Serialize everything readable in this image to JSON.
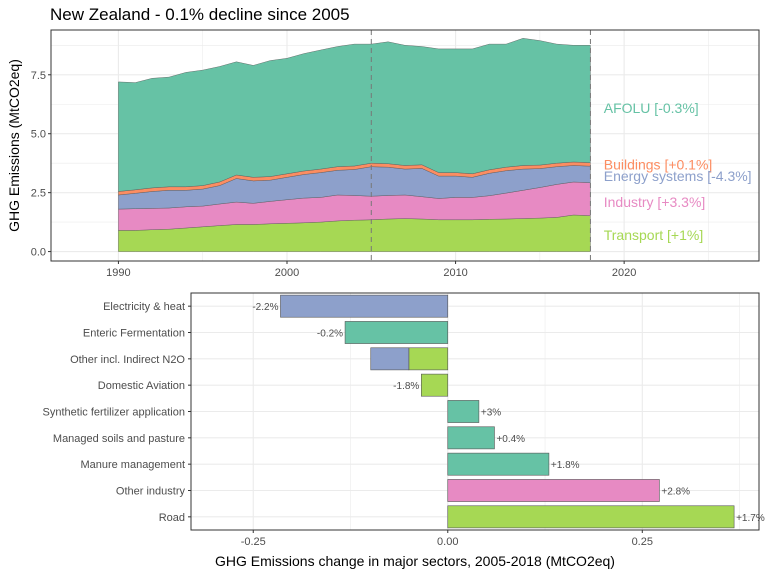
{
  "title": "New Zealand - 0.1% decline since 2005",
  "colors": {
    "afolu": "#66c2a5",
    "buildings": "#fc8d62",
    "energy": "#8da0cb",
    "industry": "#e78ac3",
    "transport": "#a6d854",
    "panel_border": "#333333",
    "grid": "#ebebeb"
  },
  "chart_data": [
    {
      "type": "area",
      "stacked": true,
      "title": "New Zealand - 0.1% decline since 2005",
      "xlabel": "",
      "ylabel": "GHG Emissions (MtCO2eq)",
      "xlim": [
        1986,
        2028
      ],
      "ylim": [
        -0.4,
        9.4
      ],
      "x_ticks": [
        1990,
        2000,
        2010,
        2020
      ],
      "y_ticks": [
        0.0,
        2.5,
        5.0,
        7.5
      ],
      "y_tick_labels": [
        "0.0",
        "2.5",
        "5.0",
        "7.5"
      ],
      "x_tick_labels": [
        "1990",
        "2000",
        "2010",
        "2020"
      ],
      "grid": true,
      "reference_lines_x": [
        2005,
        2018
      ],
      "x": [
        1990,
        1991,
        1992,
        1993,
        1994,
        1995,
        1996,
        1997,
        1998,
        1999,
        2000,
        2001,
        2002,
        2003,
        2004,
        2005,
        2006,
        2007,
        2008,
        2009,
        2010,
        2011,
        2012,
        2013,
        2014,
        2015,
        2016,
        2017,
        2018
      ],
      "series": [
        {
          "name": "Transport [+1%]",
          "key": "transport",
          "values": [
            0.9,
            0.9,
            0.93,
            0.95,
            1.0,
            1.05,
            1.1,
            1.15,
            1.15,
            1.18,
            1.2,
            1.22,
            1.25,
            1.3,
            1.33,
            1.35,
            1.38,
            1.4,
            1.38,
            1.35,
            1.35,
            1.35,
            1.37,
            1.38,
            1.4,
            1.42,
            1.45,
            1.55,
            1.52
          ]
        },
        {
          "name": "Industry [+3.3%]",
          "key": "industry",
          "values": [
            0.9,
            0.92,
            0.9,
            0.9,
            0.9,
            0.88,
            0.92,
            0.95,
            0.9,
            0.95,
            1.0,
            1.05,
            1.05,
            1.1,
            1.05,
            1.0,
            1.0,
            1.0,
            0.95,
            0.9,
            0.95,
            0.95,
            1.0,
            1.1,
            1.2,
            1.3,
            1.4,
            1.4,
            1.4
          ]
        },
        {
          "name": "Energy systems [-4.3%]",
          "key": "energy",
          "values": [
            0.6,
            0.65,
            0.72,
            0.75,
            0.7,
            0.72,
            0.78,
            1.0,
            0.95,
            0.9,
            0.95,
            1.0,
            1.05,
            1.05,
            1.1,
            1.25,
            1.2,
            1.1,
            1.2,
            0.95,
            0.9,
            0.85,
            0.95,
            0.95,
            0.9,
            0.8,
            0.75,
            0.7,
            0.7
          ]
        },
        {
          "name": "Buildings [+0.1%]",
          "key": "buildings",
          "values": [
            0.15,
            0.15,
            0.15,
            0.15,
            0.15,
            0.15,
            0.15,
            0.15,
            0.15,
            0.15,
            0.15,
            0.15,
            0.15,
            0.15,
            0.15,
            0.15,
            0.15,
            0.15,
            0.15,
            0.15,
            0.15,
            0.15,
            0.15,
            0.15,
            0.15,
            0.15,
            0.15,
            0.15,
            0.15
          ]
        },
        {
          "name": "AFOLU [-0.3%]",
          "key": "afolu",
          "values": [
            4.65,
            4.55,
            4.65,
            4.65,
            4.85,
            4.9,
            4.9,
            4.8,
            4.75,
            4.92,
            4.9,
            4.98,
            5.05,
            5.1,
            5.17,
            5.05,
            5.17,
            5.1,
            5.02,
            5.25,
            5.25,
            5.3,
            5.33,
            5.22,
            5.4,
            5.28,
            5.05,
            4.95,
            4.98
          ]
        }
      ],
      "end_labels": [
        {
          "key": "afolu",
          "text": "AFOLU [-0.3%]",
          "y": 6.1
        },
        {
          "key": "buildings",
          "text": "Buildings [+0.1%]",
          "y": 3.7
        },
        {
          "key": "energy",
          "text": "Energy systems [-4.3%]",
          "y": 3.2
        },
        {
          "key": "industry",
          "text": "Industry [+3.3%]",
          "y": 2.1
        },
        {
          "key": "transport",
          "text": "Transport [+1%]",
          "y": 0.7
        }
      ]
    },
    {
      "type": "bar",
      "orientation": "horizontal",
      "xlabel": "GHG Emissions change in major sectors, 2005-2018 (MtCO2eq)",
      "ylabel": "",
      "xlim": [
        -0.33,
        0.4
      ],
      "x_ticks": [
        -0.25,
        0.0,
        0.25
      ],
      "x_tick_labels": [
        "-0.25",
        "0.00",
        "0.25"
      ],
      "grid": true,
      "categories": [
        "Electricity & heat",
        "Enteric Fermentation",
        "Other incl. Indirect N2O",
        "Domestic Aviation",
        "Synthetic fertilizer application",
        "Managed soils and pasture",
        "Manure management",
        "Other industry",
        "Road"
      ],
      "bars": [
        {
          "category": "Electricity & heat",
          "segments": [
            {
              "sector": "energy",
              "value": -0.215
            }
          ],
          "label": "-2.2%"
        },
        {
          "category": "Enteric Fermentation",
          "segments": [
            {
              "sector": "afolu",
              "value": -0.132
            }
          ],
          "label": "-0.2%"
        },
        {
          "category": "Other incl. Indirect N2O",
          "segments": [
            {
              "sector": "transport",
              "value": -0.05
            },
            {
              "sector": "energy",
              "value": -0.049
            }
          ],
          "label": ""
        },
        {
          "category": "Domestic Aviation",
          "segments": [
            {
              "sector": "transport",
              "value": -0.034
            }
          ],
          "label": "-1.8%"
        },
        {
          "category": "Synthetic fertilizer application",
          "segments": [
            {
              "sector": "afolu",
              "value": 0.04
            }
          ],
          "label": "+3%"
        },
        {
          "category": "Managed soils and pasture",
          "segments": [
            {
              "sector": "afolu",
              "value": 0.06
            }
          ],
          "label": "+0.4%"
        },
        {
          "category": "Manure management",
          "segments": [
            {
              "sector": "afolu",
              "value": 0.13
            }
          ],
          "label": "+1.8%"
        },
        {
          "category": "Other industry",
          "segments": [
            {
              "sector": "industry",
              "value": 0.272
            }
          ],
          "label": "+2.8%"
        },
        {
          "category": "Road",
          "segments": [
            {
              "sector": "transport",
              "value": 0.368
            }
          ],
          "label": "+1.7%"
        }
      ]
    }
  ]
}
